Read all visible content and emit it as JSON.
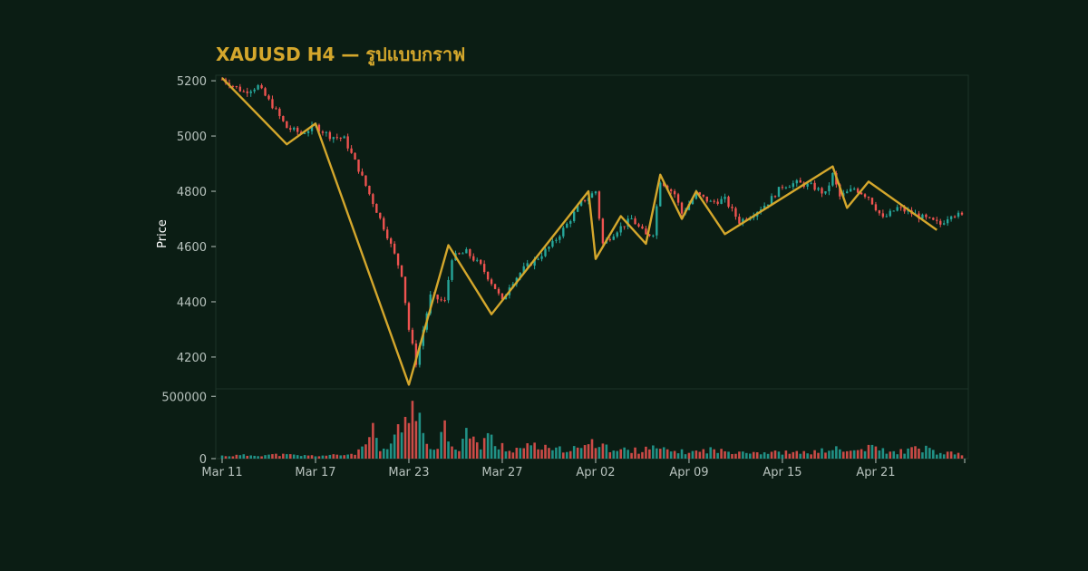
{
  "title": "XAUUSD H4 — รูปแบบกราฟ",
  "colors": {
    "background": "#0b1d14",
    "up": "#26a69a",
    "down": "#ef5350",
    "pattern_line": "#d4a72c",
    "axis_text": "#b7c2bd",
    "grid": "#1d3328"
  },
  "chart_data": [
    {
      "type": "candlestick",
      "ylabel": "Price",
      "ylim": [
        4085,
        5220
      ],
      "yticks": [
        4200,
        4400,
        4600,
        4800,
        5000,
        5200
      ],
      "x_range": [
        0,
        206
      ],
      "xtick_labels": [
        "Mar 11",
        "Mar 17",
        "Mar 23",
        "Mar 27",
        "Apr 02",
        "Apr 09",
        "Apr 15",
        "Apr 21"
      ],
      "xtick_positions": [
        0,
        26,
        52,
        78,
        104,
        130,
        156,
        182
      ],
      "anchors": [
        [
          0,
          5205
        ],
        [
          6,
          5160
        ],
        [
          10,
          5180
        ],
        [
          14,
          5110
        ],
        [
          18,
          5030
        ],
        [
          22,
          5010
        ],
        [
          26,
          5035
        ],
        [
          30,
          5000
        ],
        [
          34,
          4990
        ],
        [
          38,
          4880
        ],
        [
          42,
          4760
        ],
        [
          46,
          4640
        ],
        [
          50,
          4500
        ],
        [
          52,
          4300
        ],
        [
          54,
          4180
        ],
        [
          58,
          4420
        ],
        [
          62,
          4400
        ],
        [
          64,
          4560
        ],
        [
          68,
          4580
        ],
        [
          72,
          4530
        ],
        [
          76,
          4450
        ],
        [
          78,
          4400
        ],
        [
          80,
          4460
        ],
        [
          84,
          4520
        ],
        [
          88,
          4560
        ],
        [
          92,
          4610
        ],
        [
          96,
          4680
        ],
        [
          100,
          4760
        ],
        [
          104,
          4800
        ],
        [
          106,
          4610
        ],
        [
          110,
          4660
        ],
        [
          114,
          4700
        ],
        [
          118,
          4640
        ],
        [
          120,
          4650
        ],
        [
          122,
          4840
        ],
        [
          126,
          4790
        ],
        [
          128,
          4720
        ],
        [
          132,
          4790
        ],
        [
          136,
          4760
        ],
        [
          140,
          4770
        ],
        [
          144,
          4690
        ],
        [
          148,
          4720
        ],
        [
          152,
          4760
        ],
        [
          156,
          4820
        ],
        [
          160,
          4830
        ],
        [
          164,
          4820
        ],
        [
          168,
          4790
        ],
        [
          170,
          4860
        ],
        [
          172,
          4780
        ],
        [
          176,
          4810
        ],
        [
          180,
          4780
        ],
        [
          184,
          4700
        ],
        [
          188,
          4740
        ],
        [
          192,
          4720
        ],
        [
          196,
          4700
        ],
        [
          200,
          4680
        ],
        [
          203,
          4720
        ],
        [
          206,
          4710
        ]
      ],
      "pattern_line": {
        "x": [
          0,
          18,
          26,
          52,
          63,
          75,
          102,
          104,
          111,
          118,
          122,
          128,
          132,
          140,
          170,
          174,
          180,
          199
        ],
        "y": [
          5210,
          4970,
          5045,
          4100,
          4605,
          4355,
          4800,
          4555,
          4710,
          4610,
          4860,
          4700,
          4800,
          4645,
          4890,
          4740,
          4835,
          4660
        ]
      }
    },
    {
      "type": "bar",
      "ylim": [
        0,
        560000
      ],
      "yticks": [
        0,
        500000
      ],
      "bars": [
        [
          0,
          25000
        ],
        [
          8,
          30000
        ],
        [
          16,
          35000
        ],
        [
          24,
          25000
        ],
        [
          32,
          30000
        ],
        [
          36,
          40000
        ],
        [
          38,
          60000
        ],
        [
          40,
          130000
        ],
        [
          42,
          230000
        ],
        [
          44,
          60000
        ],
        [
          46,
          80000
        ],
        [
          48,
          200000
        ],
        [
          50,
          260000
        ],
        [
          51,
          360000
        ],
        [
          52,
          380000
        ],
        [
          53,
          440000
        ],
        [
          54,
          520000
        ],
        [
          55,
          300000
        ],
        [
          56,
          180000
        ],
        [
          58,
          100000
        ],
        [
          60,
          140000
        ],
        [
          62,
          290000
        ],
        [
          64,
          130000
        ],
        [
          66,
          90000
        ],
        [
          68,
          240000
        ],
        [
          70,
          150000
        ],
        [
          72,
          110000
        ],
        [
          74,
          250000
        ],
        [
          76,
          90000
        ],
        [
          78,
          120000
        ],
        [
          80,
          70000
        ],
        [
          84,
          100000
        ],
        [
          88,
          110000
        ],
        [
          92,
          70000
        ],
        [
          96,
          90000
        ],
        [
          100,
          80000
        ],
        [
          102,
          150000
        ],
        [
          104,
          110000
        ],
        [
          106,
          190000
        ],
        [
          108,
          60000
        ],
        [
          112,
          80000
        ],
        [
          116,
          70000
        ],
        [
          118,
          110000
        ],
        [
          120,
          90000
        ],
        [
          124,
          70000
        ],
        [
          128,
          60000
        ],
        [
          132,
          60000
        ],
        [
          136,
          80000
        ],
        [
          140,
          60000
        ],
        [
          144,
          70000
        ],
        [
          150,
          55000
        ],
        [
          156,
          55000
        ],
        [
          160,
          50000
        ],
        [
          166,
          60000
        ],
        [
          170,
          90000
        ],
        [
          174,
          60000
        ],
        [
          180,
          90000
        ],
        [
          182,
          100000
        ],
        [
          186,
          50000
        ],
        [
          192,
          80000
        ],
        [
          196,
          90000
        ],
        [
          200,
          40000
        ],
        [
          204,
          50000
        ],
        [
          206,
          30000
        ]
      ]
    }
  ]
}
